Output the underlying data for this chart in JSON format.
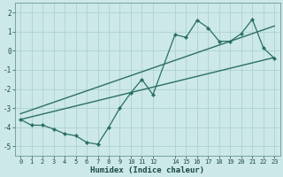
{
  "xlabel": "Humidex (Indice chaleur)",
  "ylabel": "",
  "xlim": [
    -0.5,
    23.5
  ],
  "ylim": [
    -5.5,
    2.5
  ],
  "xticks": [
    0,
    1,
    2,
    3,
    4,
    5,
    6,
    7,
    8,
    9,
    10,
    11,
    12,
    14,
    15,
    16,
    17,
    18,
    19,
    20,
    21,
    22,
    23
  ],
  "yticks": [
    -5,
    -4,
    -3,
    -2,
    -1,
    0,
    1,
    2
  ],
  "background_color": "#cce8e8",
  "grid_color": "#aacece",
  "line_color": "#2a7060",
  "zigzag_x": [
    0,
    1,
    2,
    3,
    4,
    5,
    6,
    7,
    8,
    9,
    10,
    11,
    12,
    14,
    15,
    16,
    17,
    18,
    19,
    20,
    21,
    22,
    23
  ],
  "zigzag_y": [
    -3.6,
    -3.9,
    -3.9,
    -4.1,
    -4.35,
    -4.45,
    -4.8,
    -4.9,
    -4.0,
    -3.0,
    -2.2,
    -1.5,
    -2.3,
    0.85,
    0.7,
    1.6,
    1.2,
    0.5,
    0.5,
    0.9,
    1.65,
    0.15,
    -0.4
  ],
  "line1_x": [
    0,
    23
  ],
  "line1_y": [
    -3.6,
    -0.35
  ],
  "line2_x": [
    0,
    23
  ],
  "line2_y": [
    -3.3,
    1.3
  ],
  "figsize": [
    3.2,
    2.0
  ],
  "dpi": 100
}
